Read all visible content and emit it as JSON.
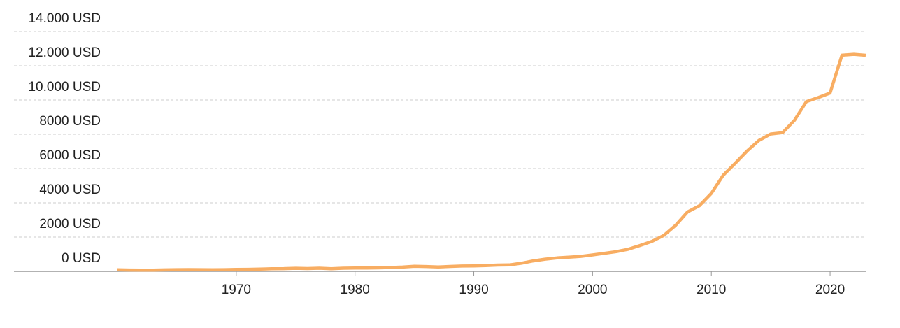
{
  "chart_data": {
    "type": "line",
    "x": [
      1960,
      1961,
      1962,
      1963,
      1964,
      1965,
      1966,
      1967,
      1968,
      1969,
      1970,
      1971,
      1972,
      1973,
      1974,
      1975,
      1976,
      1977,
      1978,
      1979,
      1980,
      1981,
      1982,
      1983,
      1984,
      1985,
      1986,
      1987,
      1988,
      1989,
      1990,
      1991,
      1992,
      1993,
      1994,
      1995,
      1996,
      1997,
      1998,
      1999,
      2000,
      2001,
      2002,
      2003,
      2004,
      2005,
      2006,
      2007,
      2008,
      2009,
      2010,
      2011,
      2012,
      2013,
      2014,
      2015,
      2016,
      2017,
      2018,
      2019,
      2020,
      2021,
      2022,
      2023
    ],
    "values": [
      90,
      76,
      71,
      74,
      85,
      98,
      104,
      97,
      91,
      100,
      113,
      119,
      132,
      157,
      160,
      178,
      165,
      185,
      156,
      184,
      195,
      197,
      203,
      225,
      251,
      294,
      282,
      252,
      284,
      311,
      318,
      333,
      367,
      377,
      473,
      610,
      709,
      782,
      829,
      873,
      959,
      1053,
      1149,
      1289,
      1509,
      1753,
      2099,
      2694,
      3468,
      3832,
      4550,
      5614,
      6301,
      7020,
      7636,
      8016,
      8094,
      8817,
      9905,
      10144,
      10409,
      12618,
      12670,
      12614
    ],
    "color": "#f8ad62",
    "xlim": [
      1960,
      2023
    ],
    "xticks": [
      1970,
      1980,
      1990,
      2000,
      2010,
      2020
    ],
    "ylim": [
      0,
      14000
    ],
    "yticks": [
      {
        "value": 0,
        "label": "0 USD"
      },
      {
        "value": 2000,
        "label": "2000 USD"
      },
      {
        "value": 4000,
        "label": "4000 USD"
      },
      {
        "value": 6000,
        "label": "6000 USD"
      },
      {
        "value": 8000,
        "label": "8000 USD"
      },
      {
        "value": 10000,
        "label": "10.000 USD"
      },
      {
        "value": 12000,
        "label": "12.000 USD"
      },
      {
        "value": 14000,
        "label": "14.000 USD"
      }
    ],
    "grid": true
  }
}
